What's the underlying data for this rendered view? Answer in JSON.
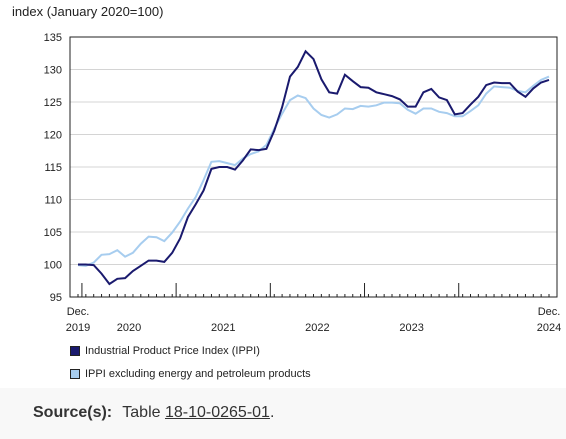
{
  "colors": {
    "ippi": "#1a1a6e",
    "ippi_ex": "#a7cdef"
  },
  "legend": {
    "ippi": "Industrial Product Price Index (IPPI)",
    "ippi_ex": "IPPI excluding energy and petroleum products"
  },
  "source": {
    "label": "Source(s):",
    "prefix": "Table",
    "table_id": "18-10-0265-01",
    "suffix": "."
  },
  "chart_data": {
    "type": "line",
    "ylabel": "index (January 2020=100)",
    "ylim": [
      95,
      135
    ],
    "yticks": [
      95,
      100,
      105,
      110,
      115,
      120,
      125,
      130,
      135
    ],
    "x_start": "2019-12",
    "x_end": "2024-12",
    "x_tick_labels": [
      {
        "month_index": 0,
        "line1": "Dec.",
        "line2": "2019"
      },
      {
        "month_index": 6.5,
        "line1": "",
        "line2": "2020"
      },
      {
        "month_index": 18.5,
        "line1": "",
        "line2": "2021"
      },
      {
        "month_index": 30.5,
        "line1": "",
        "line2": "2022"
      },
      {
        "month_index": 42.5,
        "line1": "",
        "line2": "2023"
      },
      {
        "month_index": 60,
        "line1": "Dec.",
        "line2": "2024"
      }
    ],
    "year_boundaries": [
      0.5,
      12.5,
      24.5,
      36.5,
      48.5
    ],
    "grid": "horizontal",
    "legend_position": "bottom",
    "series": [
      {
        "name": "Industrial Product Price Index (IPPI)",
        "values": [
          100.0,
          100.0,
          99.9,
          98.6,
          97.0,
          97.8,
          97.9,
          99.0,
          99.8,
          100.6,
          100.6,
          100.4,
          101.8,
          104.0,
          107.3,
          109.3,
          111.4,
          114.7,
          115.0,
          115.0,
          114.6,
          116.0,
          117.7,
          117.6,
          117.8,
          120.6,
          124.2,
          128.9,
          130.4,
          132.8,
          131.6,
          128.5,
          126.5,
          126.3,
          129.2,
          128.2,
          127.3,
          127.2,
          126.5,
          126.2,
          125.9,
          125.4,
          124.3,
          124.3,
          126.5,
          127.0,
          125.7,
          125.3,
          123.1,
          123.3,
          124.6,
          125.8,
          127.6,
          128.0,
          127.9,
          127.9,
          126.6,
          125.8,
          127.1,
          128.0,
          128.4
        ]
      },
      {
        "name": "IPPI excluding energy and petroleum products",
        "values": [
          99.9,
          99.8,
          100.3,
          101.5,
          101.6,
          102.2,
          101.2,
          101.8,
          103.2,
          104.3,
          104.2,
          103.6,
          104.9,
          106.6,
          108.6,
          110.4,
          113.0,
          115.8,
          115.9,
          115.6,
          115.3,
          116.3,
          117.0,
          117.4,
          118.4,
          120.9,
          123.2,
          125.3,
          126.0,
          125.6,
          124.0,
          123.0,
          122.6,
          123.1,
          124.0,
          123.9,
          124.4,
          124.3,
          124.5,
          124.9,
          124.9,
          124.8,
          123.8,
          123.2,
          124.0,
          124.0,
          123.5,
          123.3,
          122.8,
          122.8,
          123.6,
          124.5,
          126.3,
          127.4,
          127.3,
          127.2,
          126.7,
          126.5,
          127.5,
          128.4,
          128.9
        ]
      }
    ]
  }
}
